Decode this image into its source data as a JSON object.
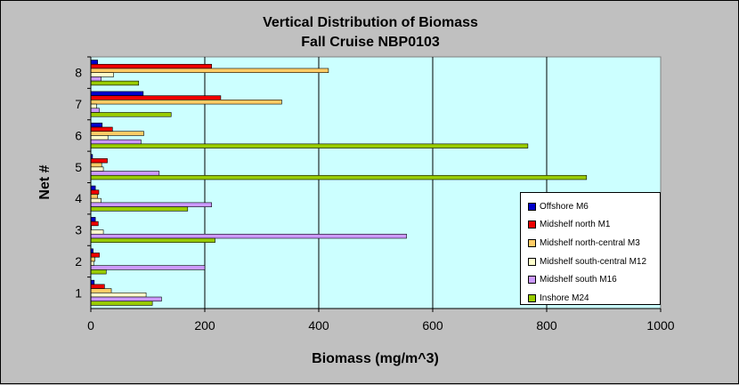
{
  "chart_data": {
    "type": "bar",
    "orientation": "horizontal",
    "title": "Vertical Distribution of Biomass",
    "subtitle": "Fall Cruise  NBP0103",
    "xlabel": "Biomass (mg/m^3)",
    "ylabel": "Net #",
    "xlim": [
      0,
      1000
    ],
    "xticks": [
      "0",
      "200",
      "400",
      "600",
      "800",
      "1000"
    ],
    "categories": [
      "1",
      "2",
      "3",
      "4",
      "5",
      "6",
      "7",
      "8"
    ],
    "grid": "vertical",
    "legend_position": "right",
    "plot_background": "#ccffff",
    "series": [
      {
        "name": "Offshore M6",
        "color": "#0000cc",
        "values": [
          6,
          4,
          8,
          8,
          3,
          20,
          92,
          12
        ]
      },
      {
        "name": "Midshelf north M1",
        "color": "#ee0000",
        "values": [
          24,
          15,
          13,
          14,
          29,
          38,
          228,
          212
        ]
      },
      {
        "name": "Midshelf north-central M3",
        "color": "#ffcc66",
        "values": [
          36,
          7,
          1,
          12,
          19,
          93,
          335,
          417
        ]
      },
      {
        "name": "Midshelf south-central M12",
        "color": "#ffffcc",
        "values": [
          97,
          5,
          22,
          18,
          22,
          30,
          10,
          40
        ]
      },
      {
        "name": "Midshelf south M16",
        "color": "#cc99ff",
        "values": [
          124,
          200,
          554,
          212,
          120,
          88,
          15,
          18
        ]
      },
      {
        "name": "Inshore M24",
        "color": "#99cc00",
        "values": [
          108,
          27,
          218,
          170,
          870,
          767,
          141,
          84
        ]
      }
    ]
  }
}
